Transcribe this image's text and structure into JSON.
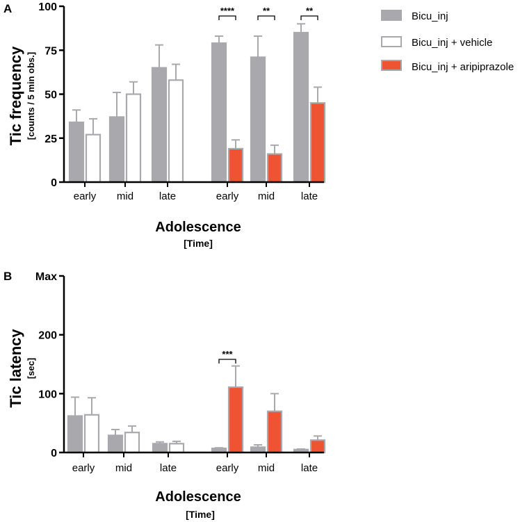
{
  "colors": {
    "bicu": "#a9a9ad",
    "bicu_edge": "#a9a9ad",
    "vehicle_fill": "#ffffff",
    "vehicle_edge": "#a9a9ad",
    "aripiprazole": "#ee5432",
    "aripiprazole_edge": "#a9a9ad",
    "axis": "#000000",
    "errorbar": "#a9a9ad"
  },
  "legend": [
    {
      "key": "bicu",
      "label": "Bicu_inj"
    },
    {
      "key": "vehicle",
      "label": "Bicu_inj + vehicle"
    },
    {
      "key": "aripiprazole",
      "label": "Bicu_inj + aripiprazole"
    }
  ],
  "chart_data": [
    {
      "panel": "A",
      "type": "bar",
      "ylabel": "Tic frequency",
      "ylabel_sub": "[counts / 5 min obs.]",
      "xlabel": "Adolescence",
      "xlabel_sub": "[Time]",
      "ylim": [
        0,
        100
      ],
      "yticks": [
        {
          "value": 0,
          "label": "0"
        },
        {
          "value": 25,
          "label": "25"
        },
        {
          "value": 50,
          "label": "50"
        },
        {
          "value": 75,
          "label": "75"
        },
        {
          "value": 100,
          "label": "100"
        }
      ],
      "groups": [
        {
          "label": "early",
          "bars": [
            {
              "series": "bicu",
              "value": 34,
              "error": 7
            },
            {
              "series": "vehicle",
              "value": 27,
              "error": 9
            }
          ]
        },
        {
          "label": "mid",
          "bars": [
            {
              "series": "bicu",
              "value": 37,
              "error": 14
            },
            {
              "series": "vehicle",
              "value": 50,
              "error": 7
            }
          ]
        },
        {
          "label": "late",
          "bars": [
            {
              "series": "bicu",
              "value": 65,
              "error": 13
            },
            {
              "series": "vehicle",
              "value": 58,
              "error": 9
            }
          ]
        },
        {
          "label": "early",
          "bars": [
            {
              "series": "bicu",
              "value": 79,
              "error": 4
            },
            {
              "series": "aripiprazole",
              "value": 19,
              "error": 5
            }
          ],
          "sig": "****"
        },
        {
          "label": "mid",
          "bars": [
            {
              "series": "bicu",
              "value": 71,
              "error": 12
            },
            {
              "series": "aripiprazole",
              "value": 16,
              "error": 5
            }
          ],
          "sig": "**"
        },
        {
          "label": "late",
          "bars": [
            {
              "series": "bicu",
              "value": 85,
              "error": 5
            },
            {
              "series": "aripiprazole",
              "value": 45,
              "error": 9
            }
          ],
          "sig": "**"
        }
      ]
    },
    {
      "panel": "B",
      "type": "bar",
      "ylabel": "Tic latency",
      "ylabel_sub": "[sec]",
      "xlabel": "Adolescence",
      "xlabel_sub": "[Time]",
      "ylim": [
        0,
        300
      ],
      "yticks": [
        {
          "value": 0,
          "label": "0"
        },
        {
          "value": 100,
          "label": "100"
        },
        {
          "value": 200,
          "label": "200"
        },
        {
          "value": 300,
          "label": "Max"
        }
      ],
      "groups": [
        {
          "label": "early",
          "bars": [
            {
              "series": "bicu",
              "value": 62,
              "error": 32
            },
            {
              "series": "vehicle",
              "value": 64,
              "error": 29
            }
          ]
        },
        {
          "label": "mid",
          "bars": [
            {
              "series": "bicu",
              "value": 29,
              "error": 10
            },
            {
              "series": "vehicle",
              "value": 34,
              "error": 11
            }
          ]
        },
        {
          "label": "late",
          "bars": [
            {
              "series": "bicu",
              "value": 15,
              "error": 3
            },
            {
              "series": "vehicle",
              "value": 15,
              "error": 4
            }
          ]
        },
        {
          "label": "early",
          "bars": [
            {
              "series": "bicu",
              "value": 7,
              "error": 1
            },
            {
              "series": "aripiprazole",
              "value": 111,
              "error": 36
            }
          ],
          "sig": "***"
        },
        {
          "label": "mid",
          "bars": [
            {
              "series": "bicu",
              "value": 9,
              "error": 4
            },
            {
              "series": "aripiprazole",
              "value": 70,
              "error": 30
            }
          ]
        },
        {
          "label": "late",
          "bars": [
            {
              "series": "bicu",
              "value": 5,
              "error": 1
            },
            {
              "series": "aripiprazole",
              "value": 21,
              "error": 7
            }
          ]
        }
      ]
    }
  ]
}
